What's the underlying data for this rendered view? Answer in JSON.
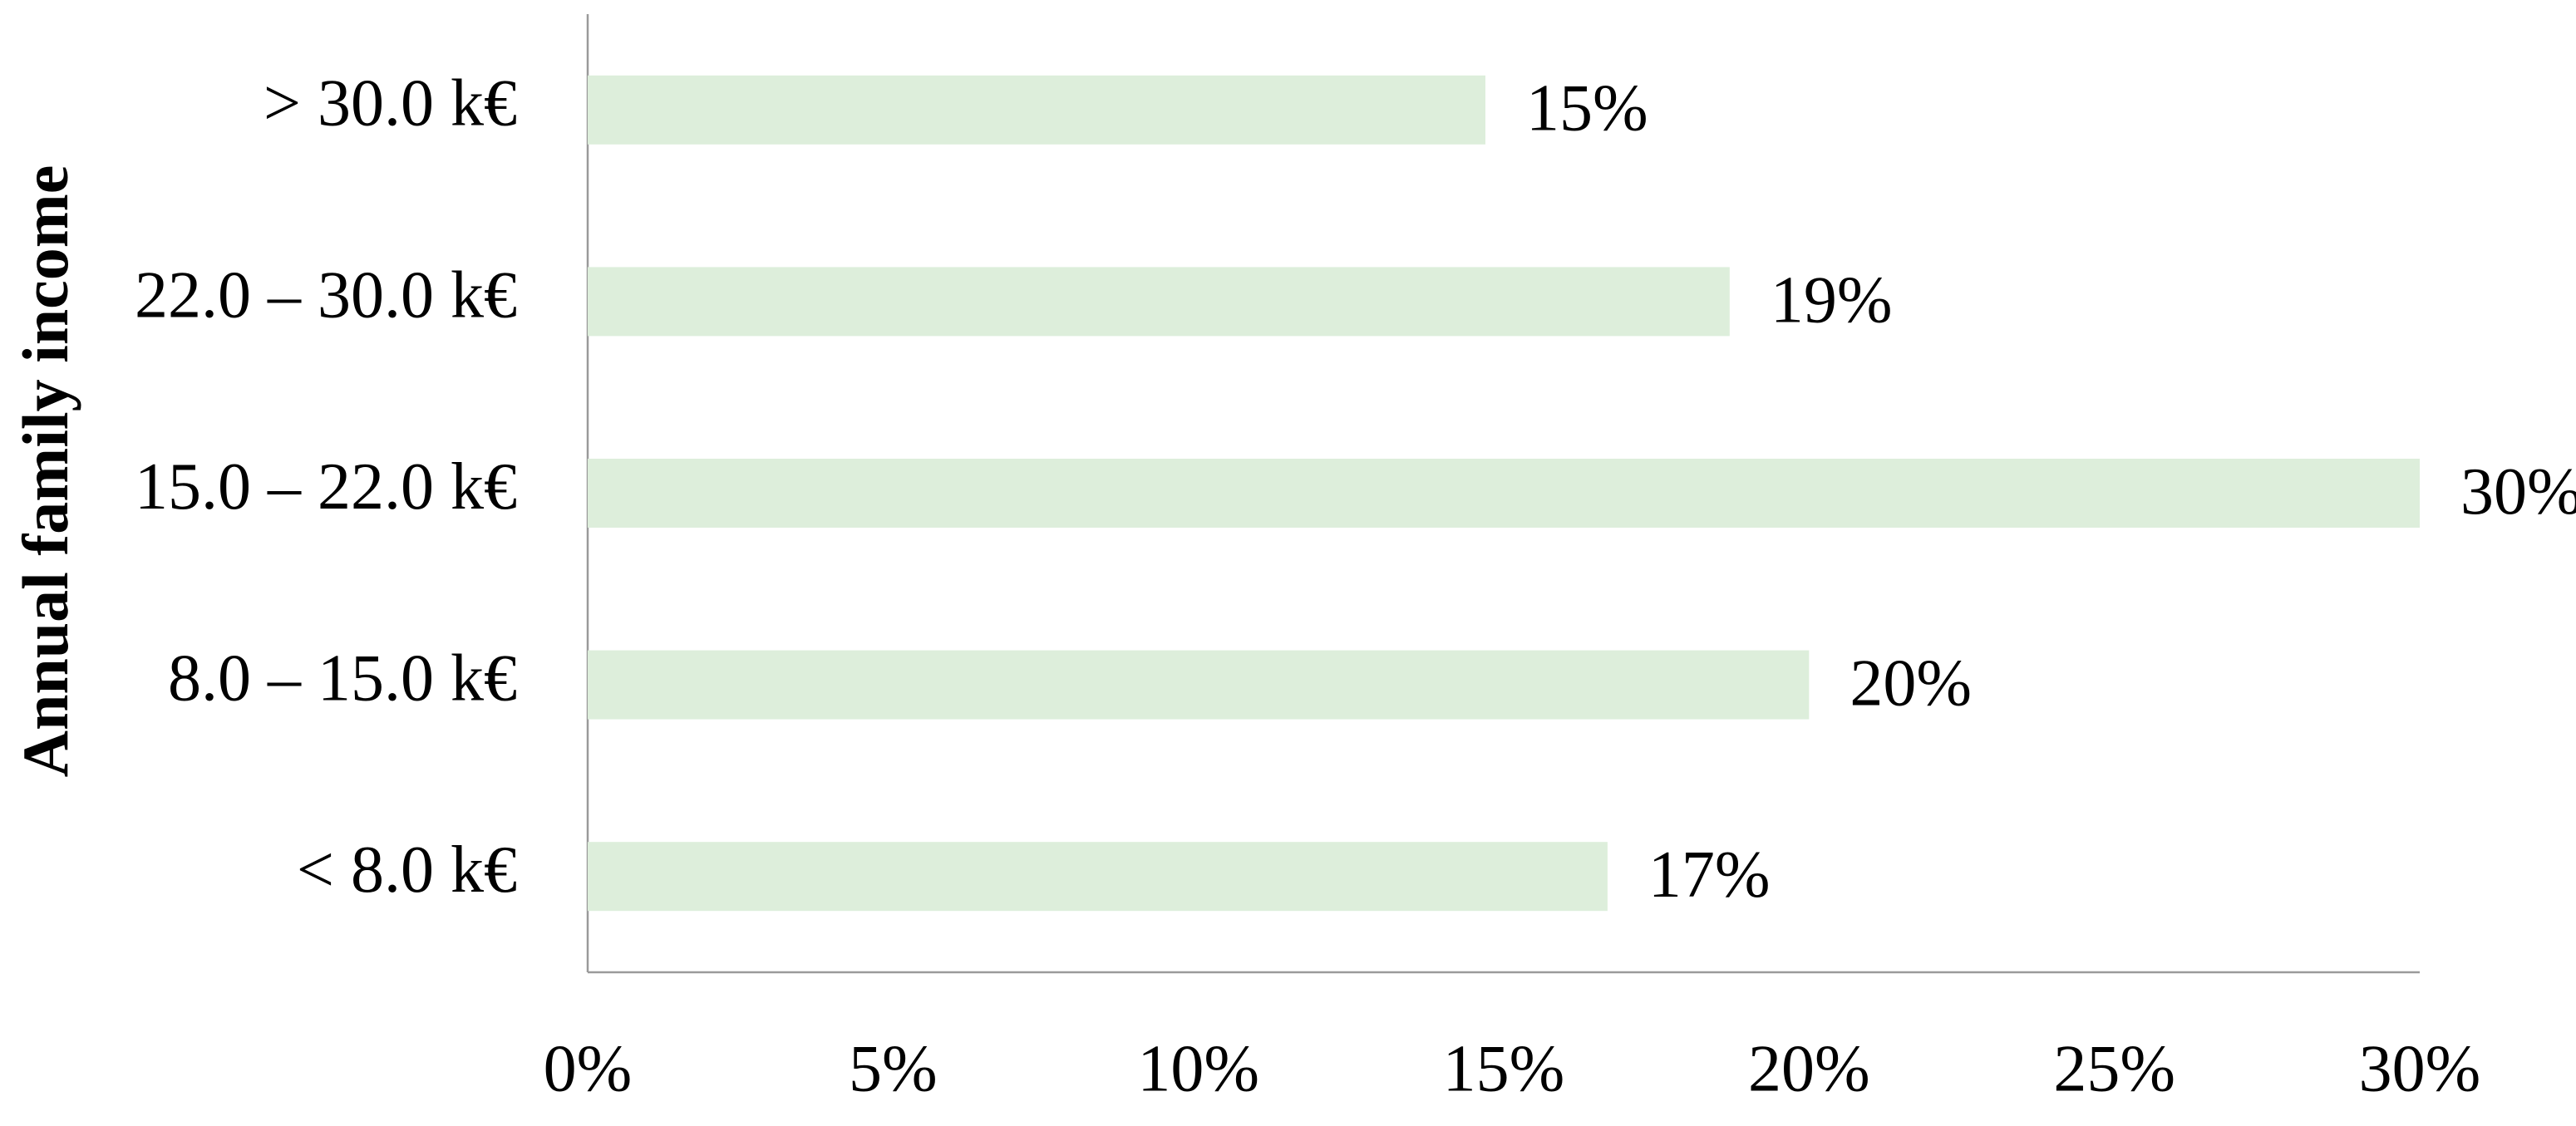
{
  "chart_data": {
    "type": "barh",
    "y_label": "Annual family income",
    "categories": [
      "> 30.0 k€",
      "22.0 – 30.0 k€",
      "15.0 – 22.0 k€",
      "8.0 – 15.0 k€",
      "< 8.0 k€"
    ],
    "values": [
      14.7,
      18.7,
      30,
      20,
      16.7
    ],
    "value_labels": [
      "15%",
      "19%",
      "30%",
      "20%",
      "17%"
    ],
    "color": "#ddeedb",
    "xlim": [
      0,
      30
    ],
    "xticks": [
      {
        "value": 0,
        "label": "0%"
      },
      {
        "value": 5,
        "label": "5%"
      },
      {
        "value": 10,
        "label": "10%"
      },
      {
        "value": 15,
        "label": "15%"
      },
      {
        "value": 20,
        "label": "20%"
      },
      {
        "value": 25,
        "label": "25%"
      },
      {
        "value": 30,
        "label": "30%"
      }
    ],
    "grid": false
  }
}
